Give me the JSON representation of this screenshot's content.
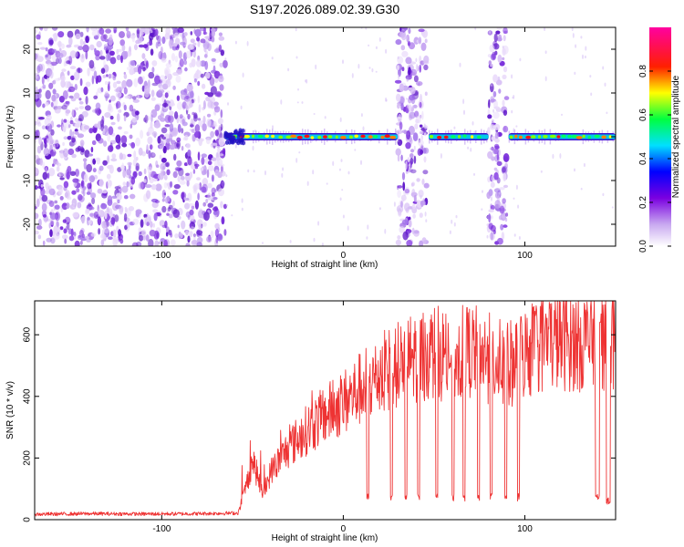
{
  "figure": {
    "title": "S197.2026.089.02.39.G30"
  },
  "chart_data": [
    {
      "type": "heatmap",
      "title": "S197.2026.089.02.39.G30",
      "xlabel": "Height of straight line (km)",
      "ylabel": "Frequency (Hz)",
      "xlim": [
        -170,
        150
      ],
      "ylim": [
        -25,
        25
      ],
      "xticks": [
        -100,
        0,
        100
      ],
      "yticks": [
        -20,
        -10,
        0,
        10,
        20
      ],
      "colorbar": {
        "label": "Normalized spectral amplitude",
        "range": [
          0.0,
          1.0
        ],
        "ticks": [
          0.0,
          0.2,
          0.4,
          0.6,
          0.8
        ],
        "tick_labels": [
          "0.0",
          "0.2",
          "0.4",
          "0.6",
          "0.8"
        ],
        "colormap": [
          "#ffffff",
          "#8a2be2",
          "#0000ff",
          "#00ffff",
          "#00ff00",
          "#ffff00",
          "#ff0000",
          "#ff00ff"
        ]
      },
      "regions": [
        {
          "kind": "noise",
          "x_range": [
            -170,
            -65
          ],
          "freq_range": [
            -25,
            25
          ]
        },
        {
          "kind": "noise",
          "x_range": [
            30,
            46
          ],
          "freq_range": [
            -25,
            25
          ]
        },
        {
          "kind": "noise",
          "x_range": [
            80,
            90
          ],
          "freq_range": [
            -25,
            25
          ]
        },
        {
          "kind": "signal_band",
          "x_range": [
            -65,
            30
          ],
          "center_freq": 0
        },
        {
          "kind": "signal_band",
          "x_range": [
            47,
            80
          ],
          "center_freq": 0
        },
        {
          "kind": "signal_band",
          "x_range": [
            91,
            150
          ],
          "center_freq": 0
        }
      ]
    },
    {
      "type": "line",
      "xlabel": "Height of straight line (km)",
      "ylabel": "SNR (10 * v/v)",
      "xlim": [
        -170,
        150
      ],
      "ylim": [
        0,
        710
      ],
      "xticks": [
        -100,
        0,
        100
      ],
      "yticks": [
        0,
        200,
        400,
        600
      ],
      "series": [
        {
          "name": "SNR",
          "color": "#ee3333",
          "x": [
            -170,
            -140,
            -110,
            -80,
            -58,
            -54,
            -50,
            -44,
            -40,
            -30,
            -20,
            -10,
            0,
            10,
            20,
            30,
            40,
            50,
            60,
            70,
            80,
            90,
            100,
            110,
            120,
            130,
            140,
            150
          ],
          "y": [
            18,
            20,
            19,
            20,
            22,
            100,
            200,
            80,
            160,
            240,
            300,
            350,
            390,
            440,
            480,
            520,
            545,
            560,
            545,
            565,
            540,
            510,
            555,
            590,
            600,
            595,
            600,
            600
          ]
        }
      ],
      "dropouts": [
        {
          "x_range": [
            13,
            14
          ],
          "y": 60
        },
        {
          "x_range": [
            26,
            27
          ],
          "y": 60
        },
        {
          "x_range": [
            34,
            35
          ],
          "y": 60
        },
        {
          "x_range": [
            41,
            42
          ],
          "y": 60
        },
        {
          "x_range": [
            51,
            52
          ],
          "y": 60
        },
        {
          "x_range": [
            60,
            61
          ],
          "y": 60
        },
        {
          "x_range": [
            66,
            67
          ],
          "y": 60
        },
        {
          "x_range": [
            74,
            75
          ],
          "y": 60
        },
        {
          "x_range": [
            81,
            82
          ],
          "y": 60
        },
        {
          "x_range": [
            89,
            90
          ],
          "y": 60
        },
        {
          "x_range": [
            96,
            97
          ],
          "y": 60
        },
        {
          "x_range": [
            139,
            141
          ],
          "y": 60
        },
        {
          "x_range": [
            145,
            147
          ],
          "y": 50
        }
      ]
    }
  ]
}
